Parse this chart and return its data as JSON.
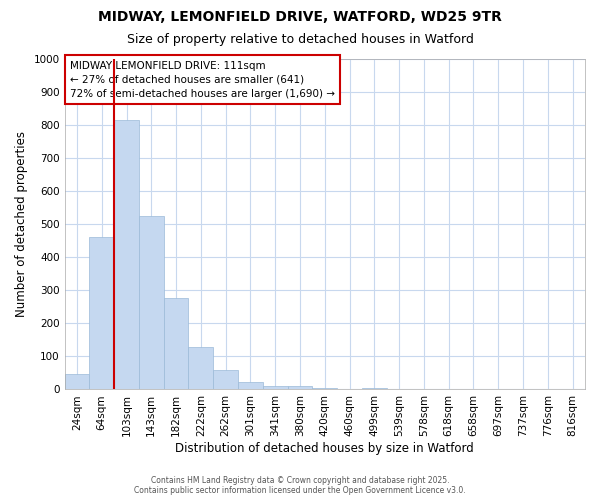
{
  "title_line1": "MIDWAY, LEMONFIELD DRIVE, WATFORD, WD25 9TR",
  "title_line2": "Size of property relative to detached houses in Watford",
  "xlabel": "Distribution of detached houses by size in Watford",
  "ylabel": "Number of detached properties",
  "categories": [
    "24sqm",
    "64sqm",
    "103sqm",
    "143sqm",
    "182sqm",
    "222sqm",
    "262sqm",
    "301sqm",
    "341sqm",
    "380sqm",
    "420sqm",
    "460sqm",
    "499sqm",
    "539sqm",
    "578sqm",
    "618sqm",
    "658sqm",
    "697sqm",
    "737sqm",
    "776sqm",
    "816sqm"
  ],
  "values": [
    48,
    462,
    814,
    524,
    278,
    127,
    60,
    24,
    10,
    10,
    5,
    0,
    5,
    0,
    0,
    0,
    0,
    0,
    0,
    0,
    0
  ],
  "bar_color": "#c5d8f0",
  "bar_edge_color": "#9bbad8",
  "vline_x_index": 2,
  "vline_color": "#cc0000",
  "annotation_title": "MIDWAY LEMONFIELD DRIVE: 111sqm",
  "annotation_line2": "← 27% of detached houses are smaller (641)",
  "annotation_line3": "72% of semi-detached houses are larger (1,690) →",
  "annotation_box_color": "#cc0000",
  "ylim": [
    0,
    1000
  ],
  "yticks": [
    0,
    100,
    200,
    300,
    400,
    500,
    600,
    700,
    800,
    900,
    1000
  ],
  "footer_line1": "Contains HM Land Registry data © Crown copyright and database right 2025.",
  "footer_line2": "Contains public sector information licensed under the Open Government Licence v3.0.",
  "background_color": "#ffffff",
  "grid_color": "#c8d8ee",
  "title_fontsize": 10,
  "subtitle_fontsize": 9,
  "label_fontsize": 8.5,
  "tick_fontsize": 7.5,
  "annotation_fontsize": 7.5
}
